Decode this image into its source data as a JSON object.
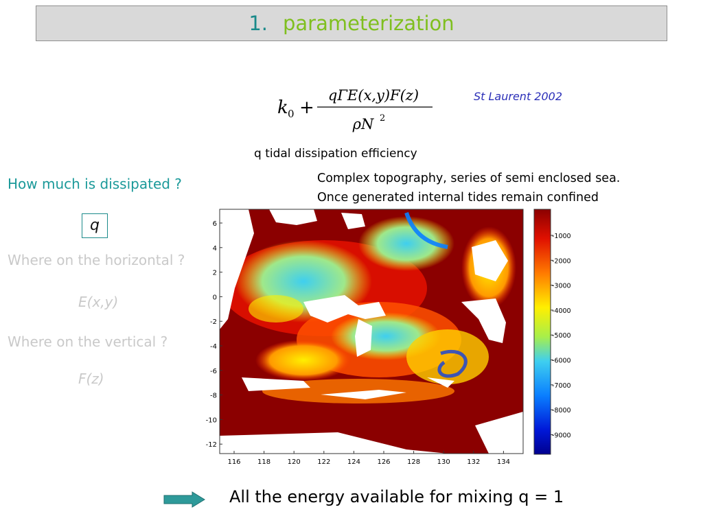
{
  "title": {
    "number": "1.",
    "text": "parameterization"
  },
  "formula": {
    "k0": "k",
    "k0_sub": "0",
    "plus": "+",
    "numerator": "qΓE(x,y)F(z)",
    "denominator": "ρN",
    "denominator_sup": "2"
  },
  "citation": "St Laurent 2002",
  "q_caption": "q tidal dissipation efficiency",
  "topo_note": {
    "line1": "Complex topography, series of semi enclosed sea.",
    "line2": "Once generated internal tides remain confined"
  },
  "questions": {
    "how_much": "How much is dissipated ?",
    "q_symbol": "q",
    "horizontal": "Where on the horizontal ?",
    "exy": "E(x,y)",
    "vertical": "Where on the vertical ?",
    "fz": "F(z)"
  },
  "map": {
    "y_ticks": [
      "6",
      "4",
      "2",
      "0",
      "-2",
      "-4",
      "-6",
      "-8",
      "-10",
      "-12"
    ],
    "x_ticks": [
      "116",
      "118",
      "120",
      "122",
      "124",
      "126",
      "128",
      "130",
      "132",
      "134"
    ],
    "colorbar_ticks": [
      "-1000",
      "-2000",
      "-3000",
      "-4000",
      "-5000",
      "-6000",
      "-7000",
      "-8000",
      "-9000"
    ],
    "colors": {
      "deep": "#00008f",
      "mid": "#3fcfef",
      "shallow": "#ffef00",
      "shelf": "#8b0000"
    }
  },
  "conclusion": "All the energy available for mixing  q = 1",
  "colors": {
    "accent_teal": "#1a9999",
    "title_green": "#7fbf1f",
    "faded": "#c9c9c9",
    "arrow": "#2e9a9a"
  }
}
